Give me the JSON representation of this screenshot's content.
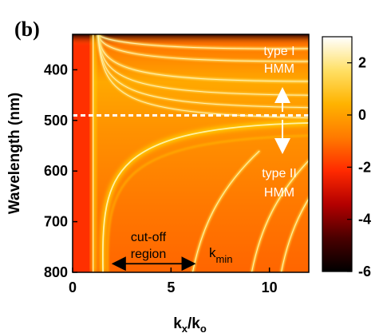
{
  "panel_label": "(b)",
  "chart_data": {
    "type": "heatmap",
    "title": "",
    "xlabel": "k",
    "xlabel_sub1": "x",
    "xlabel_mid": "/k",
    "xlabel_sub2": "o",
    "ylabel": "Wavelength (nm)",
    "xlim": [
      0,
      12
    ],
    "ylim": [
      330,
      800
    ],
    "y_inverted": true,
    "x_ticks": [
      0,
      5,
      10
    ],
    "y_ticks": [
      400,
      500,
      600,
      700,
      800
    ],
    "colorbar": {
      "range": [
        -6,
        3
      ],
      "ticks": [
        2,
        0,
        -2,
        -4,
        -6
      ],
      "colors": [
        "#000000",
        "#4a0000",
        "#b30000",
        "#ff2a00",
        "#ff7a00",
        "#ffb300",
        "#ffe066",
        "#ffffff"
      ]
    },
    "divider_wavelength": 490,
    "annotations": {
      "type1_line1": "type I",
      "type1_line2": "HMM",
      "type2_line1": "type II",
      "type2_line2": "HMM",
      "cutoff_line1": "cut-off",
      "cutoff_line2": "region",
      "kmin": "k",
      "kmin_sub": "min"
    },
    "features": {
      "vertical_edge_kx": 1.0,
      "hyperbolic_asymptote_kx": 1.3,
      "cutoff_arrow_kx": [
        1.8,
        6.2
      ],
      "cutoff_arrow_wavelength": 783,
      "type1_bands_wavelength": [
        355,
        378,
        415,
        440,
        462,
        480
      ],
      "type2_branch_pairs": [
        [
          6.5,
          9.5
        ],
        [
          11.0,
          13.0
        ]
      ]
    }
  }
}
